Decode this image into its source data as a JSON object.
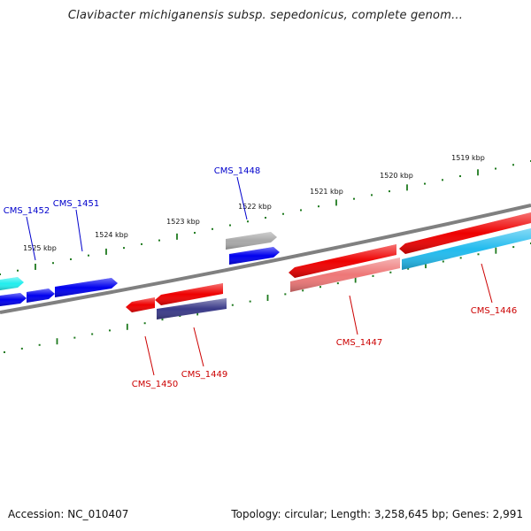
{
  "title": "Clavibacter michiganensis subsp. sepedonicus, complete genom...",
  "footer": {
    "accession": "Accession: NC_010407",
    "summary": "Topology: circular; Length: 3,258,645 bp; Genes: 2,991"
  },
  "colors": {
    "backbone": "#808080",
    "tick": "#1f7a1f",
    "forward_label": "#0000cc",
    "reverse_label": "#cc0000",
    "gene_blue": "#0000ee",
    "gene_red": "#ee0000",
    "gene_pink": "#ee7777",
    "gene_cyan": "#22bbee",
    "gene_aqua": "#22eeee",
    "gene_gray": "#a8a8a8",
    "gene_navy": "#3a3a88"
  },
  "kbp_labels": [
    "1519 kbp",
    "1520 kbp",
    "1521 kbp",
    "1522 kbp",
    "1523 kbp",
    "1524 kbp",
    "1525 kbp"
  ],
  "gene_labels": [
    {
      "text": "CMS_1448",
      "strand": "forward"
    },
    {
      "text": "CMS_1451",
      "strand": "forward"
    },
    {
      "text": "CMS_1452",
      "strand": "forward"
    },
    {
      "text": "CMS_1446",
      "strand": "reverse"
    },
    {
      "text": "CMS_1447",
      "strand": "reverse"
    },
    {
      "text": "CMS_1449",
      "strand": "reverse"
    },
    {
      "text": "CMS_1450",
      "strand": "reverse"
    }
  ]
}
